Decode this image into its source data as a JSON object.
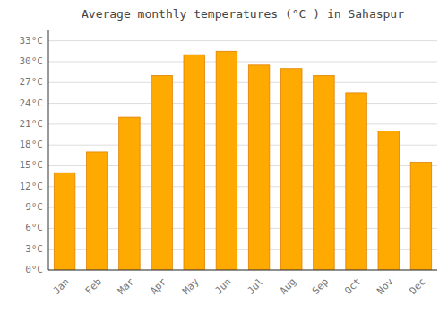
{
  "chart_data": {
    "type": "bar",
    "title": "Average monthly temperatures (°C ) in Sahaspur",
    "categories": [
      "Jan",
      "Feb",
      "Mar",
      "Apr",
      "May",
      "Jun",
      "Jul",
      "Aug",
      "Sep",
      "Oct",
      "Nov",
      "Dec"
    ],
    "values": [
      14,
      17,
      22,
      28,
      31,
      31.5,
      29.5,
      29,
      28,
      25.5,
      20,
      15.5
    ],
    "color": "#FFAA00",
    "ylim": [
      0,
      34.5
    ],
    "yticks": [
      {
        "value": 0,
        "label": "0°C"
      },
      {
        "value": 3,
        "label": "3°C"
      },
      {
        "value": 6,
        "label": "6°C"
      },
      {
        "value": 9,
        "label": "9°C"
      },
      {
        "value": 12,
        "label": "12°C"
      },
      {
        "value": 15,
        "label": "15°C"
      },
      {
        "value": 18,
        "label": "18°C"
      },
      {
        "value": 21,
        "label": "21°C"
      },
      {
        "value": 24,
        "label": "24°C"
      },
      {
        "value": 27,
        "label": "27°C"
      },
      {
        "value": 30,
        "label": "30°C"
      },
      {
        "value": 33,
        "label": "33°C"
      }
    ],
    "grid": true
  }
}
